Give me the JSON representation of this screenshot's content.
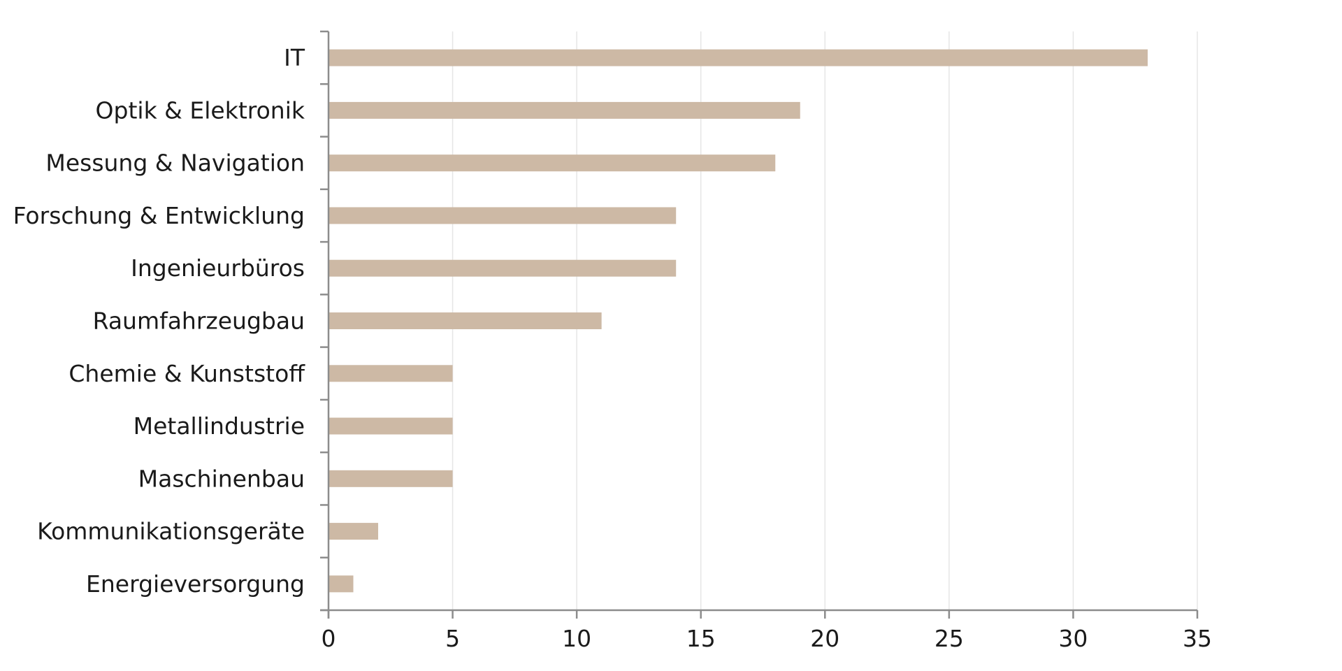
{
  "chart_data": {
    "type": "bar",
    "orientation": "horizontal",
    "title": "",
    "xlabel": "",
    "ylabel": "",
    "categories": [
      "IT",
      "Optik & Elektronik",
      "Messung & Navigation",
      "Forschung & Entwicklung",
      "Ingenieurbüros",
      "Raumfahrzeugbau",
      "Chemie & Kunststoff",
      "Metallindustrie",
      "Maschinenbau",
      "Kommunikationsgeräte",
      "Energieversorgung"
    ],
    "values": [
      33,
      19,
      18,
      14,
      14,
      11,
      5,
      5,
      5,
      2,
      1
    ],
    "xlim": [
      0,
      35
    ],
    "xticks": [
      0,
      5,
      10,
      15,
      20,
      25,
      30,
      35
    ],
    "grid": "vertical",
    "legend": "none",
    "bar_color": "#cdb9a5",
    "grid_color": "#e6e6e6",
    "axis_color": "#8c8c8c"
  }
}
